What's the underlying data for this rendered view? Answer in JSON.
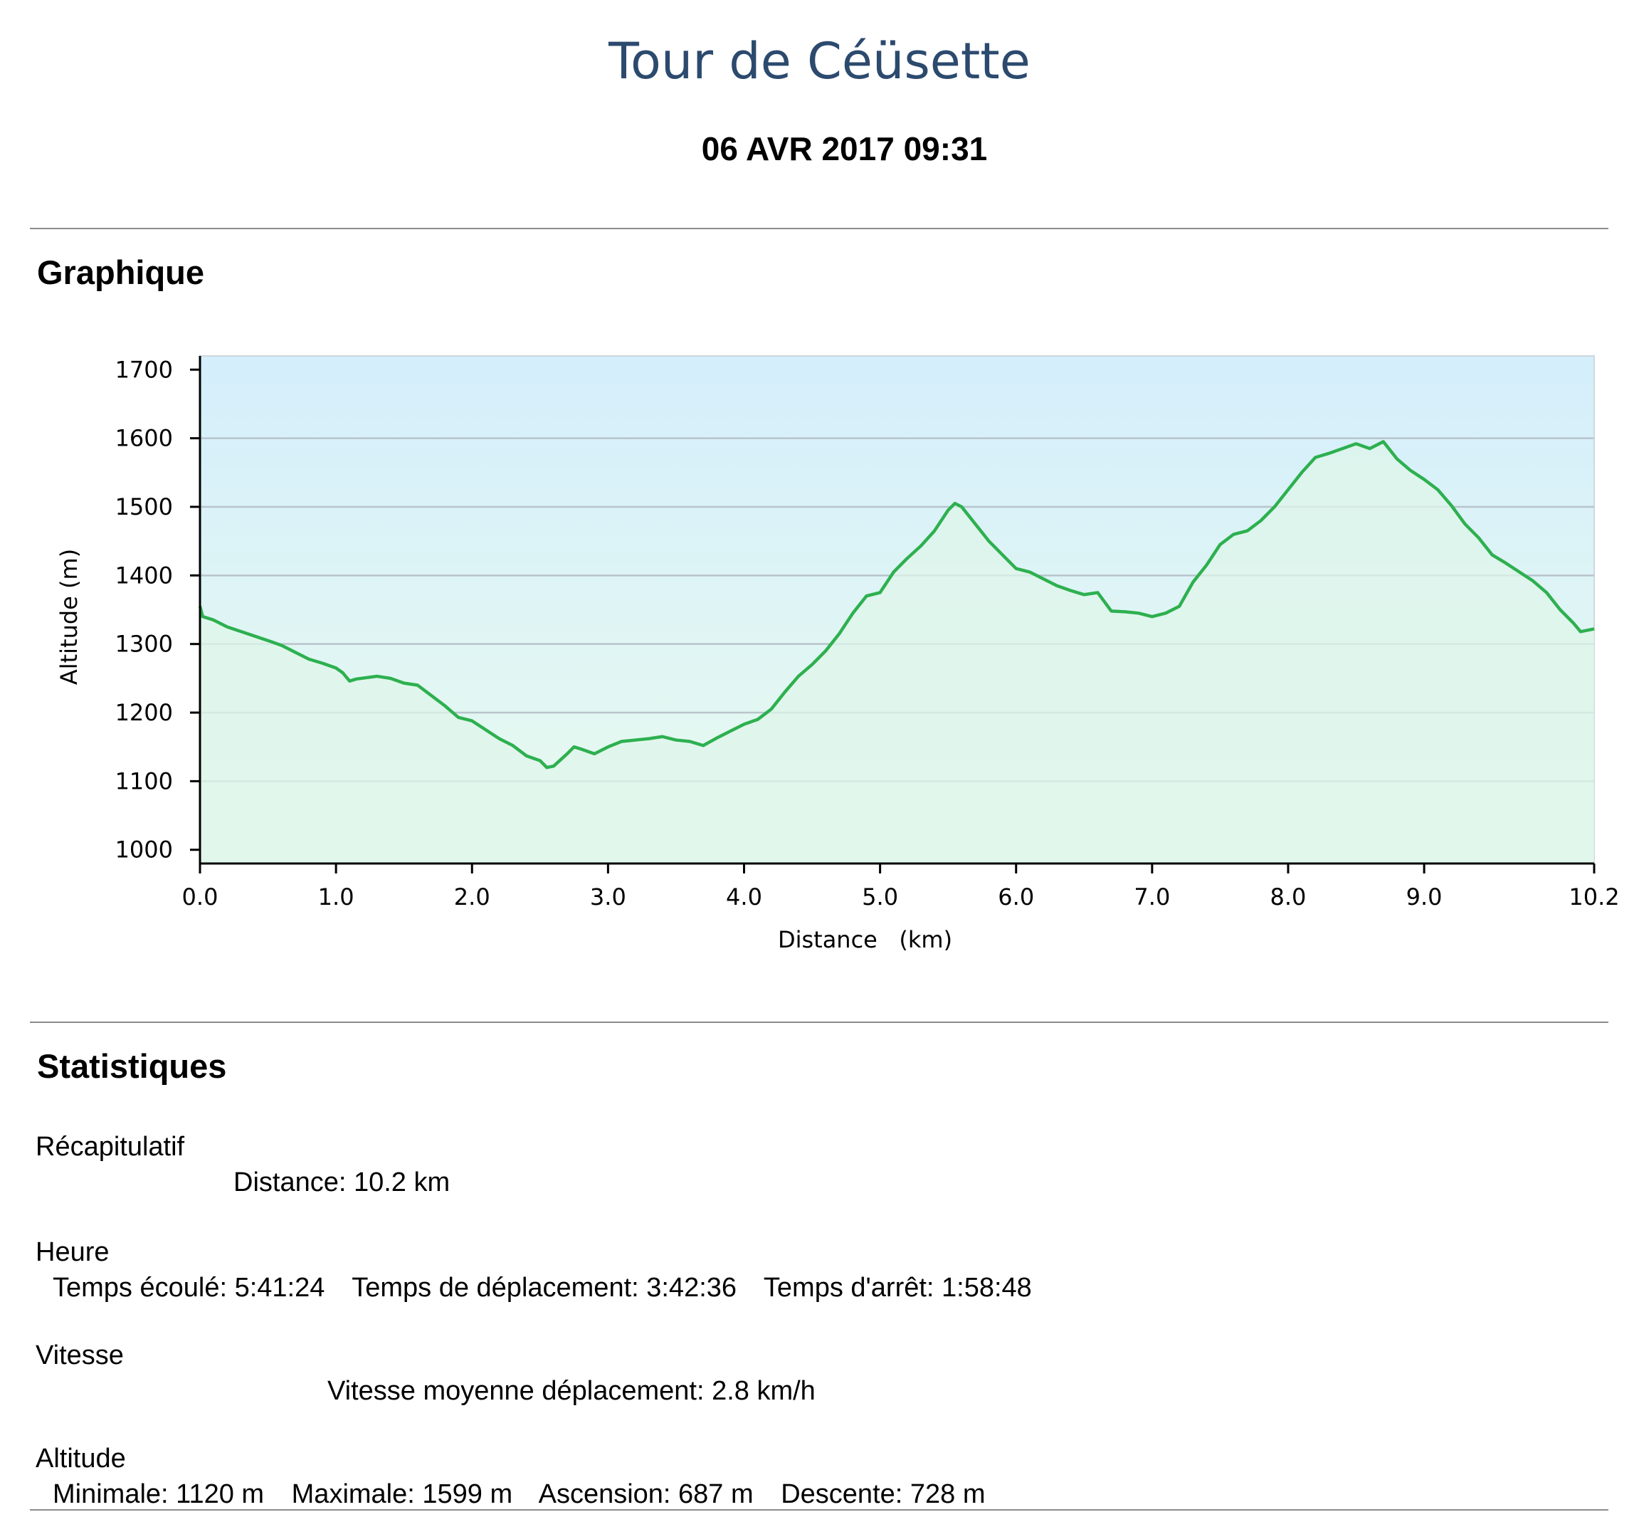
{
  "header": {
    "title": "Tour de Céüsette",
    "datetime": "06 AVR 2017 09:31"
  },
  "sections": {
    "graph": "Graphique",
    "stats": "Statistiques"
  },
  "stats": {
    "summary": {
      "title": "Récapitulatif",
      "distance": "Distance: 10.2 km"
    },
    "time": {
      "title": "Heure",
      "elapsed": "Temps écoulé: 5:41:24",
      "moving": "Temps de déplacement: 3:42:36",
      "stopped": "Temps d'arrêt: 1:58:48"
    },
    "speed": {
      "title": "Vitesse",
      "moving_avg": "Vitesse moyenne déplacement: 2.8 km/h"
    },
    "altitude": {
      "title": "Altitude",
      "min": "Minimale: 1120 m",
      "max": "Maximale: 1599 m",
      "ascent": "Ascension: 687 m",
      "descent": "Descente: 728 m"
    }
  },
  "chart_data": {
    "type": "area",
    "xlabel": "Distance   (km)",
    "ylabel": "Altitude (m)",
    "xlim": [
      0,
      10.25
    ],
    "ylim": [
      980,
      1720
    ],
    "x_ticks": [
      0,
      1,
      2,
      3,
      4,
      5,
      6,
      7,
      8,
      9,
      10.25
    ],
    "x_tick_labels": [
      "0.0",
      "1.0",
      "2.0",
      "3.0",
      "4.0",
      "5.0",
      "6.0",
      "7.0",
      "8.0",
      "9.0",
      "10.2"
    ],
    "y_ticks": [
      1000,
      1100,
      1200,
      1300,
      1400,
      1500,
      1600,
      1700
    ],
    "y_gridlines": [
      1100,
      1200,
      1300,
      1400,
      1500,
      1600
    ],
    "colors": {
      "line": "#2db04f",
      "fill_top": "#d4eefc",
      "fill_bottom": "#e9fbee",
      "grid": "#b8c4cc"
    },
    "series": [
      {
        "x": [
          0,
          0.02,
          0.1,
          0.2,
          0.35,
          0.5,
          0.6,
          0.8,
          0.9,
          1.0,
          1.05,
          1.1,
          1.15,
          1.3,
          1.4,
          1.5,
          1.6,
          1.7,
          1.8,
          1.9,
          2.0,
          2.1,
          2.2,
          2.3,
          2.4,
          2.5,
          2.55,
          2.6,
          2.7,
          2.75,
          2.8,
          2.9,
          3.0,
          3.1,
          3.2,
          3.3,
          3.4,
          3.5,
          3.6,
          3.7,
          3.8,
          3.9,
          4.0,
          4.1,
          4.2,
          4.3,
          4.4,
          4.5,
          4.6,
          4.7,
          4.8,
          4.9,
          5.0,
          5.1,
          5.2,
          5.3,
          5.4,
          5.5,
          5.55,
          5.6,
          5.7,
          5.8,
          5.9,
          6.0,
          6.1,
          6.2,
          6.3,
          6.4,
          6.5,
          6.6,
          6.7,
          6.8,
          6.9,
          7.0,
          7.1,
          7.2,
          7.3,
          7.4,
          7.5,
          7.6,
          7.7,
          7.8,
          7.9,
          8.0,
          8.1,
          8.2,
          8.3,
          8.4,
          8.5,
          8.6,
          8.7,
          8.8,
          8.9,
          9.0,
          9.1,
          9.2,
          9.3,
          9.4,
          9.5,
          9.6,
          9.7,
          9.8,
          9.9,
          10.0,
          10.1,
          10.15,
          10.25
        ],
        "y": [
          1355,
          1340,
          1335,
          1325,
          1315,
          1305,
          1298,
          1278,
          1272,
          1265,
          1258,
          1246,
          1249,
          1253,
          1250,
          1243,
          1240,
          1225,
          1210,
          1193,
          1188,
          1175,
          1162,
          1152,
          1137,
          1130,
          1120,
          1122,
          1140,
          1150,
          1147,
          1140,
          1150,
          1158,
          1160,
          1162,
          1165,
          1160,
          1158,
          1152,
          1163,
          1173,
          1183,
          1190,
          1205,
          1230,
          1253,
          1270,
          1290,
          1315,
          1345,
          1370,
          1375,
          1405,
          1425,
          1443,
          1465,
          1495,
          1505,
          1500,
          1475,
          1450,
          1430,
          1410,
          1405,
          1395,
          1385,
          1378,
          1372,
          1375,
          1348,
          1347,
          1345,
          1340,
          1345,
          1355,
          1390,
          1415,
          1445,
          1460,
          1465,
          1480,
          1500,
          1525,
          1550,
          1572,
          1578,
          1585,
          1592,
          1585,
          1595,
          1570,
          1553,
          1540,
          1525,
          1502,
          1475,
          1455,
          1430,
          1418,
          1405,
          1392,
          1375,
          1350,
          1330,
          1318,
          1322
        ]
      }
    ]
  }
}
